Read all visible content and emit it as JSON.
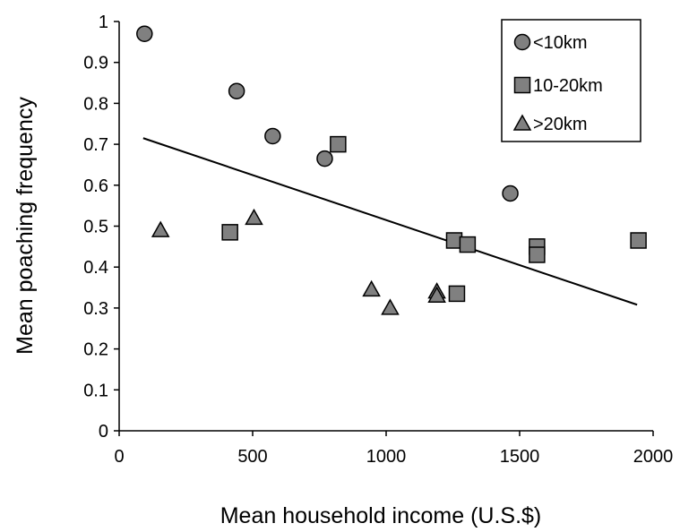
{
  "chart_data": {
    "type": "scatter",
    "title": "",
    "xlabel": "Mean household income (U.S.$)",
    "ylabel": "Mean poaching frequency",
    "xlim": [
      0,
      2000
    ],
    "ylim": [
      0,
      1
    ],
    "x_ticks": [
      0,
      500,
      1000,
      1500,
      2000
    ],
    "y_ticks": [
      0,
      0.1,
      0.2,
      0.3,
      0.4,
      0.5,
      0.6,
      0.7,
      0.8,
      0.9,
      1
    ],
    "x_tick_labels": [
      "0",
      "500",
      "1000",
      "1500",
      "2000"
    ],
    "y_tick_labels": [
      "0",
      "0.1",
      "0.2",
      "0.3",
      "0.4",
      "0.5",
      "0.6",
      "0.7",
      "0.8",
      "0.9",
      "1"
    ],
    "grid": false,
    "legend_position": "top-right",
    "series": [
      {
        "name": "<10km",
        "marker": "circle",
        "color": "#808080",
        "points": [
          {
            "x": 95,
            "y": 0.97
          },
          {
            "x": 440,
            "y": 0.83
          },
          {
            "x": 575,
            "y": 0.72
          },
          {
            "x": 770,
            "y": 0.665
          },
          {
            "x": 1465,
            "y": 0.58
          }
        ]
      },
      {
        "name": "10-20km",
        "marker": "square",
        "color": "#808080",
        "points": [
          {
            "x": 415,
            "y": 0.485
          },
          {
            "x": 820,
            "y": 0.7
          },
          {
            "x": 1255,
            "y": 0.465
          },
          {
            "x": 1305,
            "y": 0.455
          },
          {
            "x": 1265,
            "y": 0.335
          },
          {
            "x": 1565,
            "y": 0.45
          },
          {
            "x": 1565,
            "y": 0.43
          },
          {
            "x": 1945,
            "y": 0.465
          }
        ]
      },
      {
        "name": ">20km",
        "marker": "triangle",
        "color": "#808080",
        "points": [
          {
            "x": 155,
            "y": 0.49
          },
          {
            "x": 505,
            "y": 0.52
          },
          {
            "x": 945,
            "y": 0.345
          },
          {
            "x": 1015,
            "y": 0.3
          },
          {
            "x": 1190,
            "y": 0.34
          },
          {
            "x": 1190,
            "y": 0.33
          }
        ]
      }
    ],
    "trendline": {
      "x": [
        90,
        1940
      ],
      "y": [
        0.715,
        0.308
      ]
    }
  }
}
